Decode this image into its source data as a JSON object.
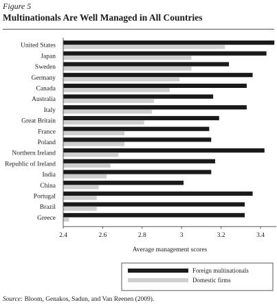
{
  "figure": {
    "label": "Figure 5",
    "title": "Multinationals Are Well Managed in All Countries",
    "source_tag": "Source:",
    "source_text": " Bloom, Genakos, Sadun, and Van Reenen (2009)."
  },
  "chart_data": {
    "type": "bar",
    "orientation": "horizontal",
    "categories": [
      "United States",
      "Japan",
      "Sweden",
      "Germany",
      "Canada",
      "Australia",
      "Italy",
      "Great Britain",
      "France",
      "Poland",
      "Northern Ireland",
      "Republic of Ireland",
      "India",
      "China",
      "Portugal",
      "Brazil",
      "Greece"
    ],
    "series": [
      {
        "name": "Foreign multinationals",
        "color": "#1a1a1a",
        "values": [
          3.47,
          3.43,
          3.24,
          3.36,
          3.33,
          3.16,
          3.33,
          3.19,
          3.14,
          3.15,
          3.42,
          3.17,
          3.15,
          3.01,
          3.36,
          3.32,
          3.32
        ]
      },
      {
        "name": "Domestic firms",
        "color": "#cfcfcf",
        "values": [
          3.22,
          3.05,
          3.05,
          2.99,
          2.94,
          2.86,
          2.85,
          2.81,
          2.71,
          2.71,
          2.68,
          2.64,
          2.62,
          2.58,
          2.57,
          2.57,
          2.43
        ]
      }
    ],
    "xlabel": "Average management scores",
    "xlim": [
      2.4,
      3.48
    ],
    "xticks": [
      "2.4",
      "2.6",
      "2.8",
      "3",
      "3.2",
      "3.4"
    ],
    "legend_position": "bottom-right",
    "grid": false
  }
}
